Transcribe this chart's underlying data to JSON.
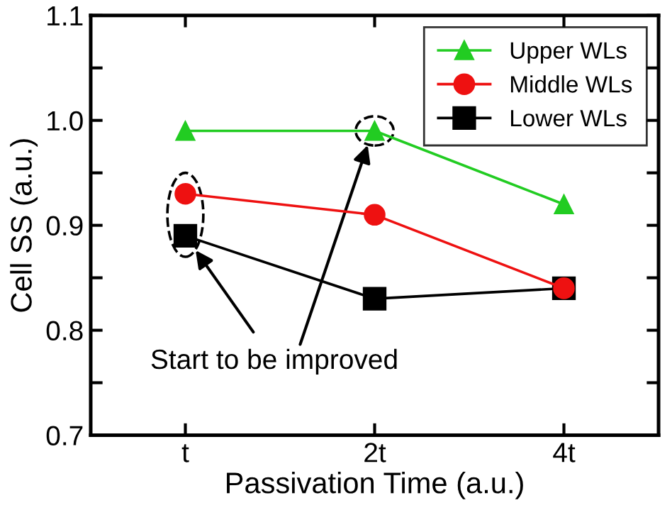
{
  "chart_data": {
    "type": "line",
    "xlabel": "Passivation Time (a.u.)",
    "ylabel": "Cell SS (a.u.)",
    "categories": [
      "t",
      "2t",
      "4t"
    ],
    "series": [
      {
        "name": "Upper WLs",
        "color": "#22cc22",
        "marker": "triangle",
        "values": [
          0.99,
          0.99,
          0.92
        ]
      },
      {
        "name": "Middle WLs",
        "color": "#ee1111",
        "marker": "circle",
        "values": [
          0.93,
          0.91,
          0.84
        ]
      },
      {
        "name": "Lower WLs",
        "color": "#000000",
        "marker": "square",
        "values": [
          0.89,
          0.83,
          0.84
        ]
      }
    ],
    "ylim": [
      0.7,
      1.1
    ],
    "yticks": [
      0.7,
      {
        "value": 0.75,
        "label": null
      },
      0.8,
      {
        "value": 0.85,
        "label": null
      },
      0.9,
      {
        "value": 0.95,
        "label": null
      },
      {
        "value": 1.0,
        "label": "1.0"
      },
      {
        "value": 1.05,
        "label": null
      },
      1.1
    ],
    "annotations": [
      "Start to be improved"
    ],
    "legend": "top right",
    "grid": false,
    "line_style": "solid"
  }
}
